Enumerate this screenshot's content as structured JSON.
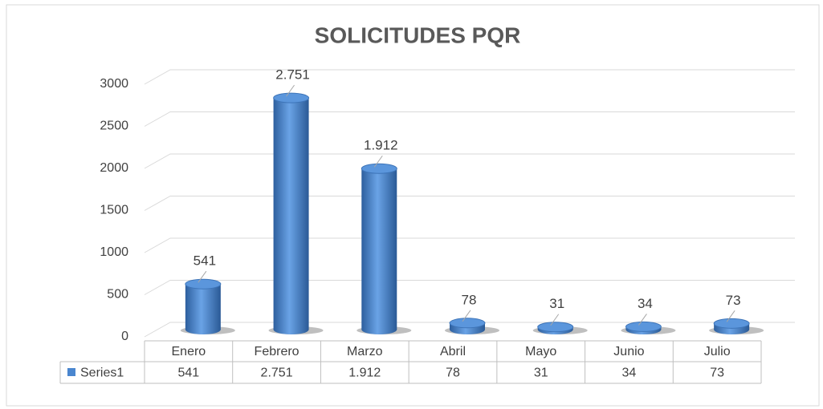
{
  "chart_data": {
    "type": "bar",
    "title": "SOLICITUDES PQR",
    "categories": [
      "Enero",
      "Febrero",
      "Marzo",
      "Abril",
      "Mayo",
      "Junio",
      "Julio"
    ],
    "series": [
      {
        "name": "Series1",
        "color": "#4a86cf",
        "values": [
          541,
          2751,
          1912,
          78,
          31,
          34,
          73
        ],
        "value_labels": [
          "541",
          "2.751",
          "1.912",
          "78",
          "31",
          "34",
          "73"
        ]
      }
    ],
    "ylim": [
      0,
      3000
    ],
    "yticks": [
      0,
      500,
      1000,
      1500,
      2000,
      2500,
      3000
    ],
    "grid": true
  }
}
